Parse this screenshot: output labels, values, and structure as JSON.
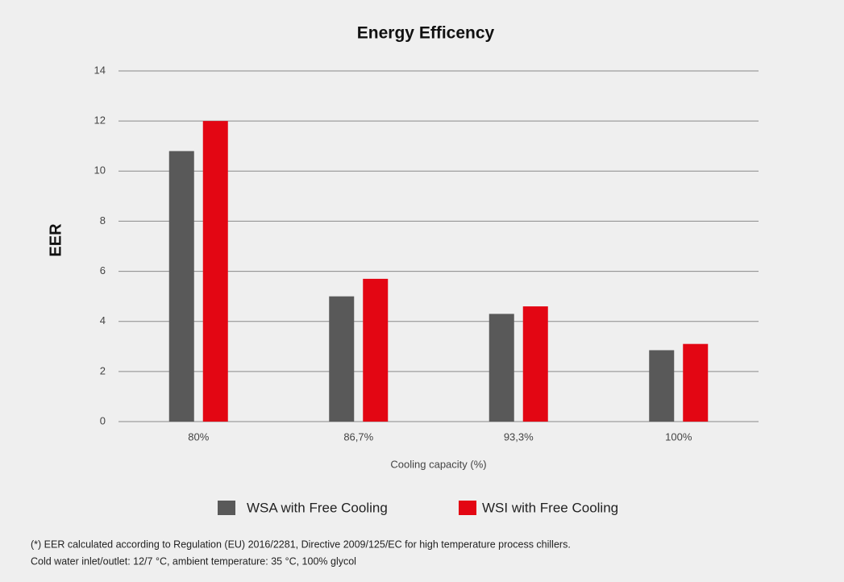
{
  "chart_data": {
    "type": "bar",
    "title": "Energy Efficency",
    "y_label": "EER",
    "x_label": "Cooling capacity (%)",
    "categories": [
      "80%",
      "86,7%",
      "93,3%",
      "100%"
    ],
    "series": [
      {
        "name": "WSA with Free Cooling",
        "color": "#595959",
        "values": [
          10.8,
          5.0,
          4.3,
          2.85
        ]
      },
      {
        "name": "WSI with Free Cooling",
        "color": "#e30613",
        "values": [
          12,
          5.7,
          4.6,
          3.1
        ]
      }
    ],
    "ylim": [
      0,
      14
    ],
    "yticks": [
      0,
      2,
      4,
      6,
      8,
      10,
      12,
      14
    ],
    "grid": true,
    "legend": "bottom",
    "notes": [
      "(*) EER calculated according to Regulation (EU) 2016/2281, Directive 2009/125/EC for high temperature process chillers.",
      "Cold water inlet/outlet: 12/7 °C, ambient temperature: 35 °C, 100% glycol"
    ]
  }
}
